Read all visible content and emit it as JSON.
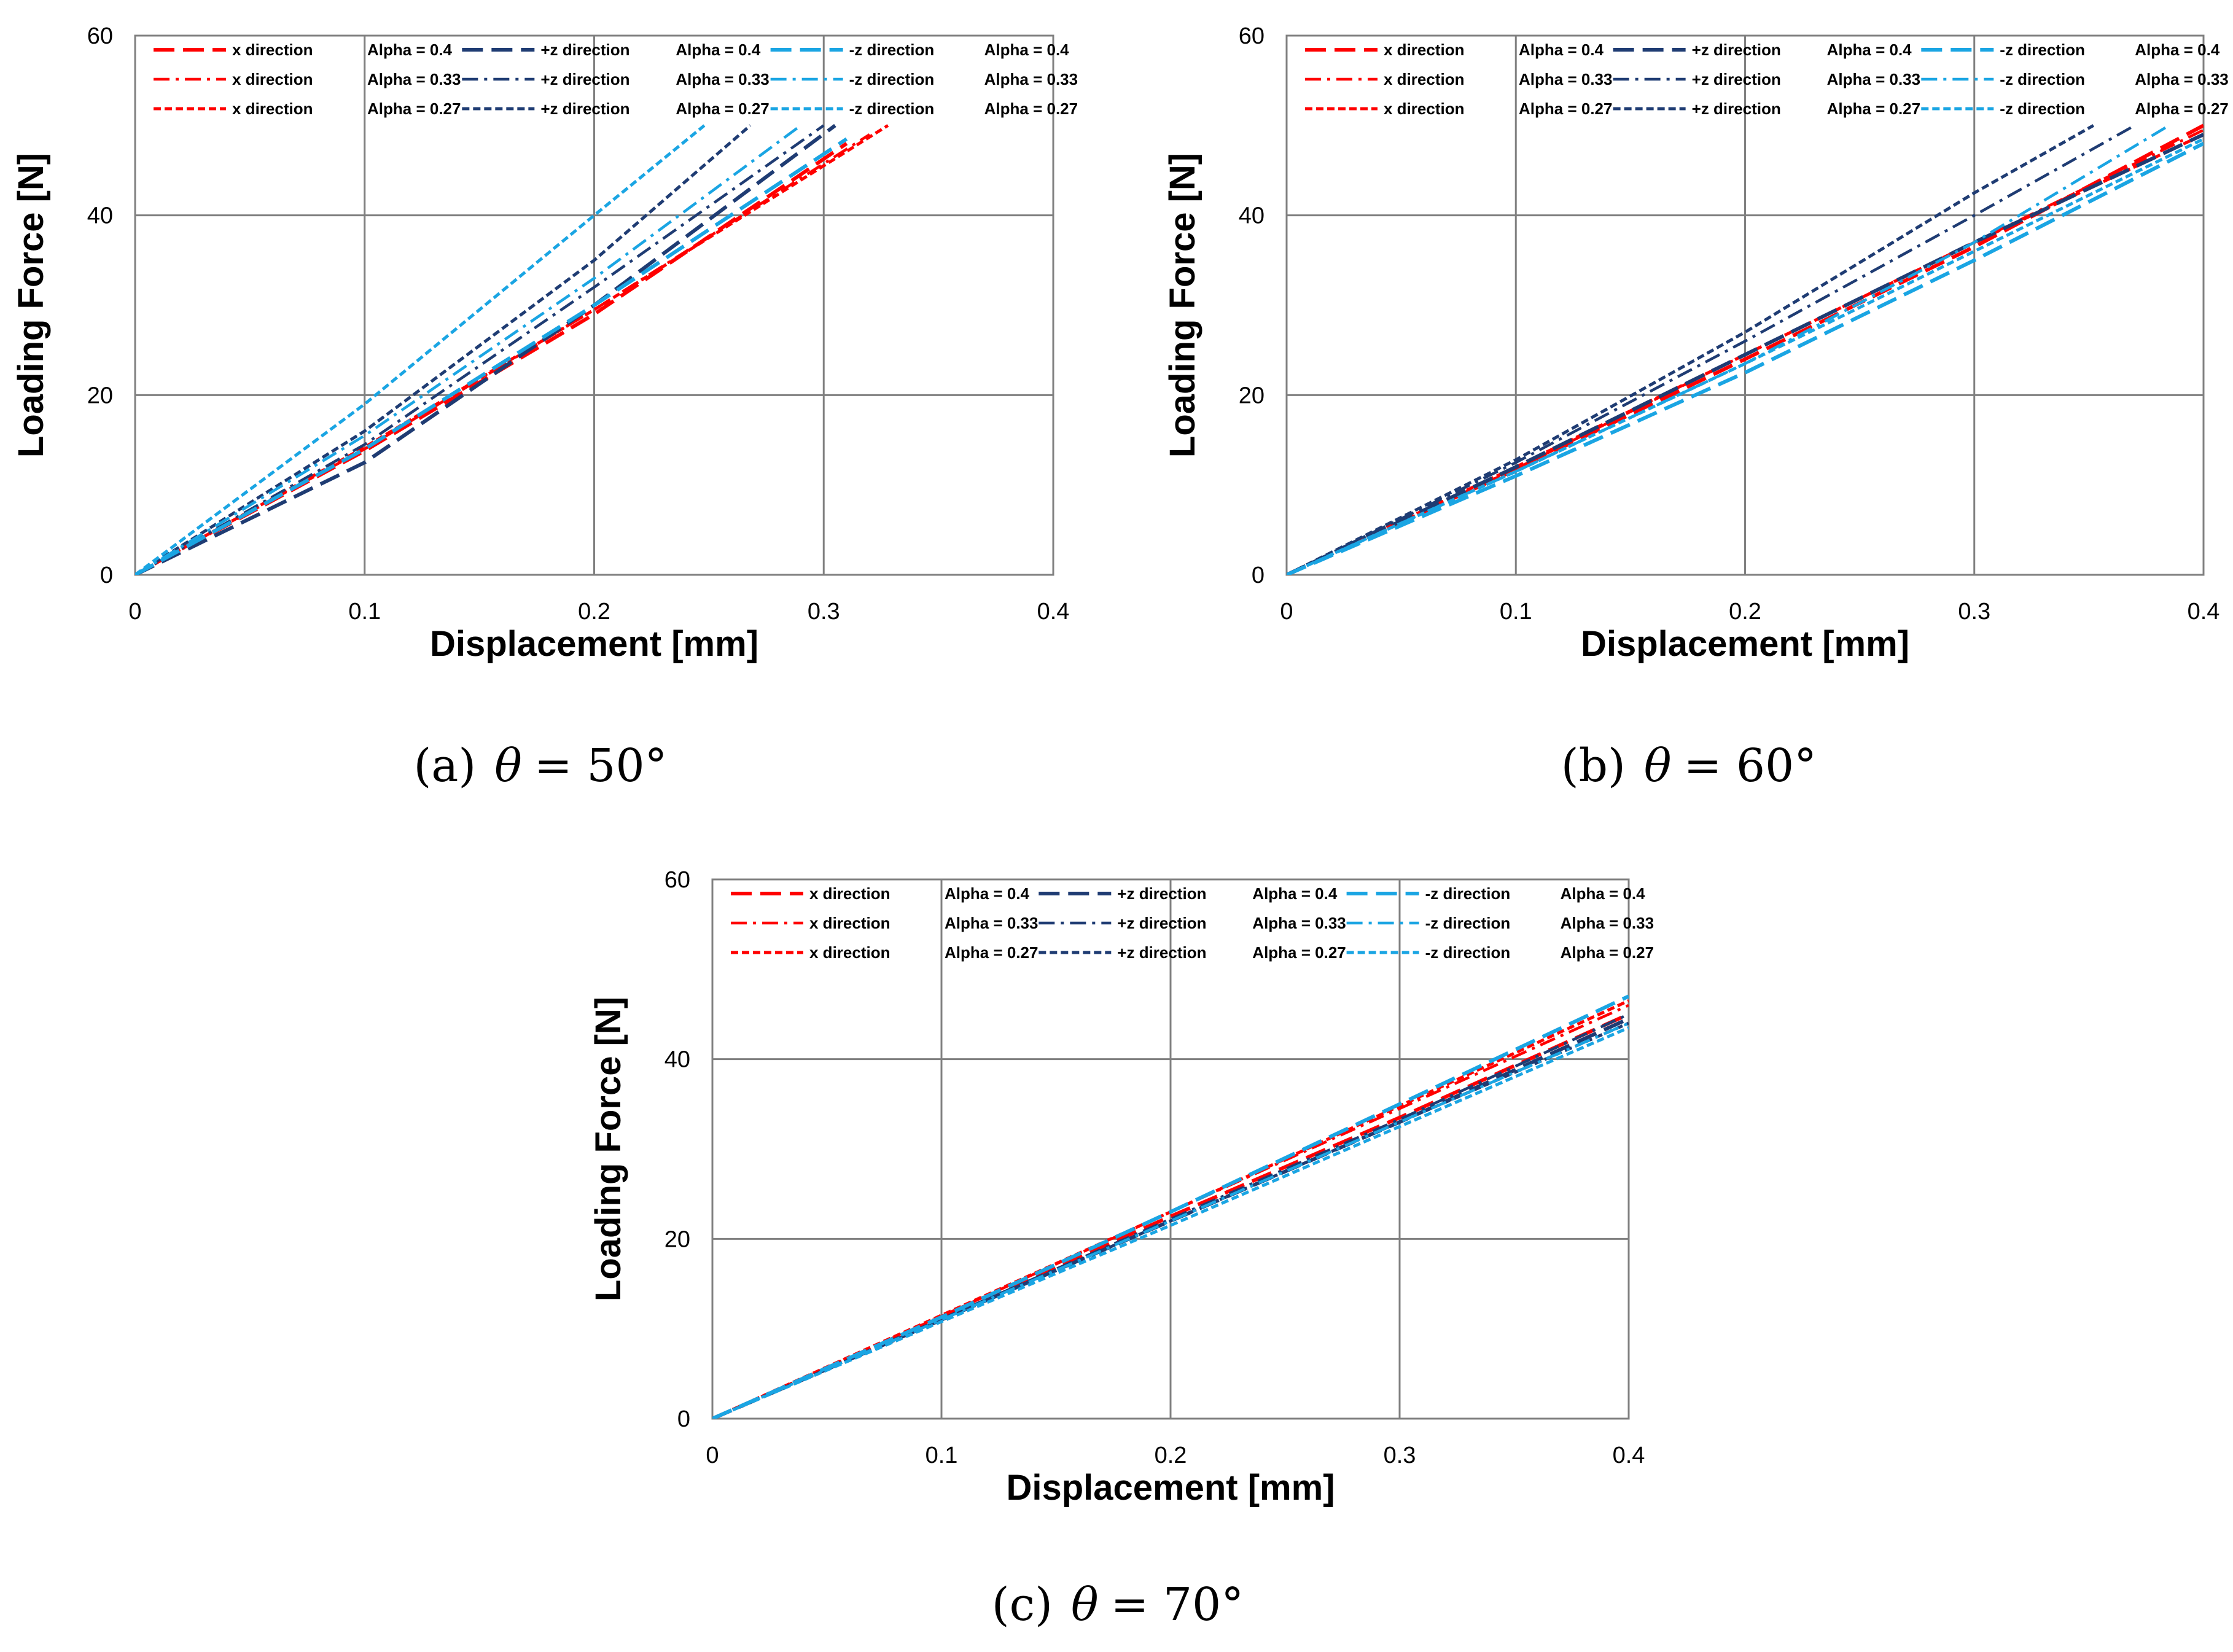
{
  "colors": {
    "x": "#ff0000",
    "plusz": "#1f3c73",
    "minusz": "#1aa5e3",
    "grid": "#808080",
    "frame": "#808080"
  },
  "chart_data": [
    {
      "type": "line",
      "caption": {
        "label": "(a)",
        "symbol": "θ",
        "eq": "= 50°"
      },
      "xlabel": "Displacement [mm]",
      "ylabel": "Loading Force [N]",
      "xlim": [
        0,
        0.4
      ],
      "ylim": [
        0,
        60
      ],
      "xticks": [
        "0",
        "0.1",
        "0.2",
        "0.3",
        "0.4"
      ],
      "yticks": [
        "0",
        "20",
        "40",
        "60"
      ],
      "grid": true,
      "legend_position": "top-inside",
      "series": [
        {
          "name": "x direction",
          "alpha": "Alpha = 0.4",
          "dir": "x",
          "style": "longdash",
          "x": [
            0,
            0.1,
            0.2,
            0.31
          ],
          "y": [
            0,
            13.8,
            29,
            48
          ]
        },
        {
          "name": "x direction",
          "alpha": "Alpha = 0.33",
          "dir": "x",
          "style": "dashdot",
          "x": [
            0,
            0.1,
            0.2,
            0.32
          ],
          "y": [
            0,
            14,
            29.5,
            49
          ]
        },
        {
          "name": "x direction",
          "alpha": "Alpha = 0.27",
          "dir": "x",
          "style": "shortdash",
          "x": [
            0,
            0.1,
            0.2,
            0.328
          ],
          "y": [
            0,
            14.2,
            29.5,
            50
          ]
        },
        {
          "name": "+z direction",
          "alpha": "Alpha = 0.4",
          "dir": "plusz",
          "style": "longdash",
          "x": [
            0,
            0.1,
            0.2,
            0.305
          ],
          "y": [
            0,
            12.5,
            30,
            50
          ]
        },
        {
          "name": "+z direction",
          "alpha": "Alpha = 0.33",
          "dir": "plusz",
          "style": "dashdot",
          "x": [
            0,
            0.1,
            0.2,
            0.3
          ],
          "y": [
            0,
            14.5,
            32,
            50
          ]
        },
        {
          "name": "+z direction",
          "alpha": "Alpha = 0.27",
          "dir": "plusz",
          "style": "shortdash",
          "x": [
            0,
            0.1,
            0.2,
            0.268
          ],
          "y": [
            0,
            16,
            35,
            50
          ]
        },
        {
          "name": "-z direction",
          "alpha": "Alpha = 0.4",
          "dir": "minusz",
          "style": "longdash",
          "x": [
            0,
            0.1,
            0.2,
            0.31
          ],
          "y": [
            0,
            14,
            30,
            48.5
          ]
        },
        {
          "name": "-z direction",
          "alpha": "Alpha = 0.33",
          "dir": "minusz",
          "style": "dashdot",
          "x": [
            0,
            0.1,
            0.2,
            0.29
          ],
          "y": [
            0,
            15.5,
            33,
            50
          ]
        },
        {
          "name": "-z direction",
          "alpha": "Alpha = 0.27",
          "dir": "minusz",
          "style": "shortdash",
          "x": [
            0,
            0.1,
            0.2,
            0.248
          ],
          "y": [
            0,
            19,
            40,
            50
          ]
        }
      ]
    },
    {
      "type": "line",
      "caption": {
        "label": "(b)",
        "symbol": "θ",
        "eq": "= 60°"
      },
      "xlabel": "Displacement [mm]",
      "ylabel": "Loading Force [N]",
      "xlim": [
        0,
        0.4
      ],
      "ylim": [
        0,
        60
      ],
      "xticks": [
        "0",
        "0.1",
        "0.2",
        "0.3",
        "0.4"
      ],
      "yticks": [
        "0",
        "20",
        "40",
        "60"
      ],
      "grid": true,
      "legend_position": "top-inside",
      "series": [
        {
          "name": "x direction",
          "alpha": "Alpha = 0.4",
          "dir": "x",
          "style": "longdash",
          "x": [
            0,
            0.1,
            0.2,
            0.3,
            0.4
          ],
          "y": [
            0,
            11.7,
            24,
            36.5,
            50
          ]
        },
        {
          "name": "x direction",
          "alpha": "Alpha = 0.33",
          "dir": "x",
          "style": "dashdot",
          "x": [
            0,
            0.1,
            0.2,
            0.3,
            0.4
          ],
          "y": [
            0,
            11.8,
            24.5,
            37,
            49.5
          ]
        },
        {
          "name": "x direction",
          "alpha": "Alpha = 0.27",
          "dir": "x",
          "style": "shortdash",
          "x": [
            0,
            0.1,
            0.2,
            0.3,
            0.4
          ],
          "y": [
            0,
            12,
            24.5,
            37,
            49
          ]
        },
        {
          "name": "+z direction",
          "alpha": "Alpha = 0.4",
          "dir": "plusz",
          "style": "longdash",
          "x": [
            0,
            0.1,
            0.2,
            0.3,
            0.4
          ],
          "y": [
            0,
            12,
            24.5,
            37,
            49
          ]
        },
        {
          "name": "+z direction",
          "alpha": "Alpha = 0.33",
          "dir": "plusz",
          "style": "dashdot",
          "x": [
            0,
            0.1,
            0.2,
            0.3,
            0.37
          ],
          "y": [
            0,
            12.5,
            26,
            40,
            50
          ]
        },
        {
          "name": "+z direction",
          "alpha": "Alpha = 0.27",
          "dir": "plusz",
          "style": "shortdash",
          "x": [
            0,
            0.1,
            0.2,
            0.3,
            0.352
          ],
          "y": [
            0,
            12.8,
            27,
            42.5,
            50
          ]
        },
        {
          "name": "-z direction",
          "alpha": "Alpha = 0.4",
          "dir": "minusz",
          "style": "longdash",
          "x": [
            0,
            0.1,
            0.2,
            0.3,
            0.4
          ],
          "y": [
            0,
            11,
            22.5,
            35,
            48
          ]
        },
        {
          "name": "-z direction",
          "alpha": "Alpha = 0.33",
          "dir": "minusz",
          "style": "dashdot",
          "x": [
            0,
            0.1,
            0.2,
            0.3,
            0.385
          ],
          "y": [
            0,
            11.5,
            23.5,
            37,
            50
          ]
        },
        {
          "name": "-z direction",
          "alpha": "Alpha = 0.27",
          "dir": "minusz",
          "style": "shortdash",
          "x": [
            0,
            0.1,
            0.2,
            0.3,
            0.4
          ],
          "y": [
            0,
            11.5,
            23.5,
            36,
            48.5
          ]
        }
      ]
    },
    {
      "type": "line",
      "caption": {
        "label": "(c)",
        "symbol": "θ",
        "eq": "= 70°"
      },
      "xlabel": "Displacement [mm]",
      "ylabel": "Loading Force [N]",
      "xlim": [
        0,
        0.4
      ],
      "ylim": [
        0,
        60
      ],
      "xticks": [
        "0",
        "0.1",
        "0.2",
        "0.3",
        "0.4"
      ],
      "yticks": [
        "0",
        "20",
        "40",
        "60"
      ],
      "grid": true,
      "legend_position": "top-inside",
      "series": [
        {
          "name": "x direction",
          "alpha": "Alpha = 0.4",
          "dir": "x",
          "style": "longdash",
          "x": [
            0,
            0.1,
            0.2,
            0.3,
            0.4
          ],
          "y": [
            0,
            11.2,
            22.5,
            33.5,
            45
          ]
        },
        {
          "name": "x direction",
          "alpha": "Alpha = 0.33",
          "dir": "x",
          "style": "dashdot",
          "x": [
            0,
            0.1,
            0.2,
            0.3,
            0.4
          ],
          "y": [
            0,
            11.4,
            23,
            34.5,
            46
          ]
        },
        {
          "name": "x direction",
          "alpha": "Alpha = 0.27",
          "dir": "x",
          "style": "shortdash",
          "x": [
            0,
            0.1,
            0.2,
            0.3,
            0.4
          ],
          "y": [
            0,
            11.5,
            23,
            34.8,
            46.5
          ]
        },
        {
          "name": "+z direction",
          "alpha": "Alpha = 0.4",
          "dir": "plusz",
          "style": "longdash",
          "x": [
            0,
            0.1,
            0.2,
            0.3,
            0.4
          ],
          "y": [
            0,
            11,
            22,
            33,
            44.5
          ]
        },
        {
          "name": "+z direction",
          "alpha": "Alpha = 0.33",
          "dir": "plusz",
          "style": "dashdot",
          "x": [
            0,
            0.1,
            0.2,
            0.3,
            0.4
          ],
          "y": [
            0,
            11.1,
            22.2,
            33.3,
            45
          ]
        },
        {
          "name": "+z direction",
          "alpha": "Alpha = 0.27",
          "dir": "plusz",
          "style": "shortdash",
          "x": [
            0,
            0.1,
            0.2,
            0.3,
            0.4
          ],
          "y": [
            0,
            11,
            22,
            33,
            44
          ]
        },
        {
          "name": "-z direction",
          "alpha": "Alpha = 0.4",
          "dir": "minusz",
          "style": "longdash",
          "x": [
            0,
            0.1,
            0.2,
            0.3,
            0.4
          ],
          "y": [
            0,
            11.3,
            23,
            35,
            47
          ]
        },
        {
          "name": "-z direction",
          "alpha": "Alpha = 0.33",
          "dir": "minusz",
          "style": "dashdot",
          "x": [
            0,
            0.1,
            0.2,
            0.3,
            0.4
          ],
          "y": [
            0,
            11,
            22,
            33,
            44
          ]
        },
        {
          "name": "-z direction",
          "alpha": "Alpha = 0.27",
          "dir": "minusz",
          "style": "shortdash",
          "x": [
            0,
            0.1,
            0.2,
            0.3,
            0.4
          ],
          "y": [
            0,
            10.8,
            21.5,
            32.5,
            43.5
          ]
        }
      ]
    }
  ]
}
